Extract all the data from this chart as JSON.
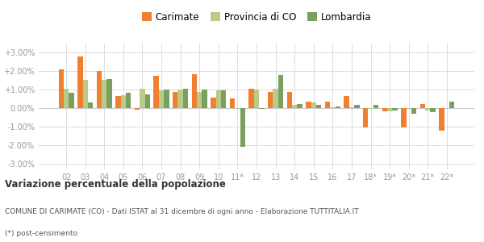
{
  "categories": [
    "02",
    "03",
    "04",
    "05",
    "06",
    "07",
    "08",
    "09",
    "10",
    "11*",
    "12",
    "13",
    "14",
    "15",
    "16",
    "17",
    "18*",
    "19*",
    "20*",
    "21*",
    "22*"
  ],
  "carimate": [
    2.1,
    2.8,
    2.0,
    0.65,
    -0.08,
    1.75,
    0.9,
    1.85,
    0.6,
    0.55,
    1.05,
    0.9,
    0.9,
    0.35,
    0.35,
    0.65,
    -1.05,
    -0.15,
    -1.05,
    0.25,
    -1.2
  ],
  "provincia": [
    1.05,
    1.55,
    1.55,
    0.7,
    1.05,
    0.95,
    1.0,
    0.9,
    0.95,
    -0.05,
    1.0,
    1.05,
    0.2,
    0.3,
    0.05,
    0.05,
    -0.05,
    -0.15,
    -0.05,
    -0.1,
    0.0
  ],
  "lombardia": [
    0.85,
    0.3,
    1.6,
    0.85,
    0.75,
    1.0,
    1.05,
    1.0,
    0.95,
    -2.1,
    -0.05,
    1.8,
    0.25,
    0.2,
    0.1,
    0.2,
    0.2,
    -0.1,
    -0.3,
    -0.2,
    0.35
  ],
  "carimate_color": "#f08030",
  "provincia_color": "#b8cc88",
  "lombardia_color": "#7aa060",
  "background_color": "#ffffff",
  "grid_color": "#dddddd",
  "yticks": [
    -3.0,
    -2.0,
    -1.0,
    0.0,
    1.0,
    2.0,
    3.0
  ],
  "ytick_labels": [
    "-3.00%",
    "-2.00%",
    "-1.00%",
    "0.00%",
    "+1.00%",
    "+2.00%",
    "+3.00%"
  ],
  "ylim": [
    -3.3,
    3.5
  ],
  "title": "Variazione percentuale della popolazione",
  "subtitle": "COMUNE DI CARIMATE (CO) - Dati ISTAT al 31 dicembre di ogni anno - Elaborazione TUTTITALIA.IT",
  "footnote": "(*) post-censimento",
  "legend_labels": [
    "Carimate",
    "Provincia di CO",
    "Lombardia"
  ],
  "bar_width": 0.27
}
